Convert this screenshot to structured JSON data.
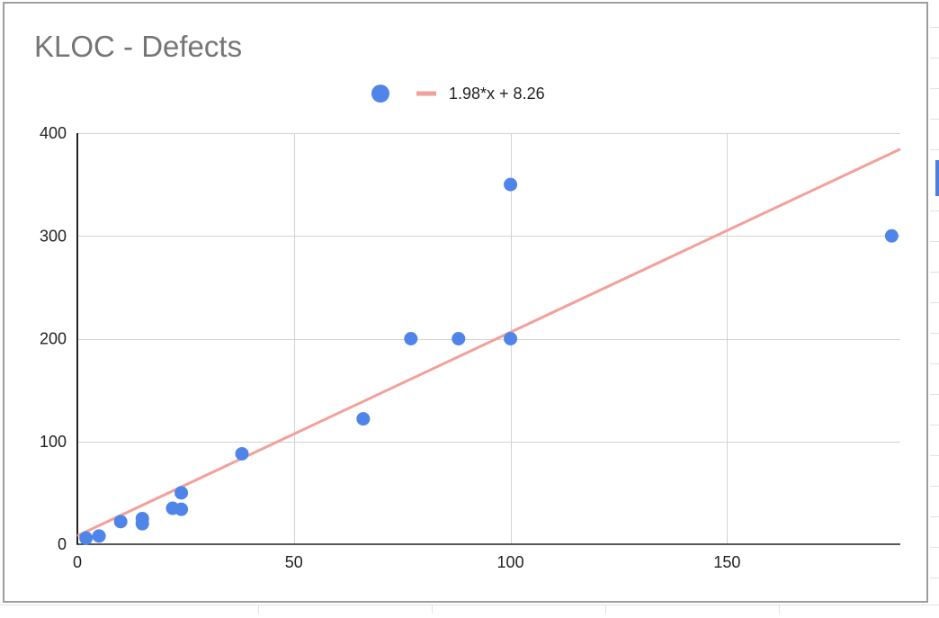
{
  "chart_data": {
    "type": "scatter",
    "title": "KLOC - Defects",
    "xlabel": "",
    "ylabel": "",
    "xlim": [
      0,
      190
    ],
    "ylim": [
      0,
      400
    ],
    "x_ticks": [
      "0",
      "50",
      "100",
      "150"
    ],
    "y_ticks": [
      "0",
      "100",
      "200",
      "300",
      "400"
    ],
    "grid": true,
    "legend_position": "top-center",
    "series": [
      {
        "type": "scatter",
        "color": "#4f84e8",
        "points": [
          {
            "x": 2,
            "y": 6
          },
          {
            "x": 5,
            "y": 8
          },
          {
            "x": 10,
            "y": 22
          },
          {
            "x": 15,
            "y": 25
          },
          {
            "x": 15,
            "y": 20
          },
          {
            "x": 22,
            "y": 35
          },
          {
            "x": 24,
            "y": 50
          },
          {
            "x": 24,
            "y": 34
          },
          {
            "x": 38,
            "y": 88
          },
          {
            "x": 66,
            "y": 122
          },
          {
            "x": 77,
            "y": 200
          },
          {
            "x": 88,
            "y": 200
          },
          {
            "x": 100,
            "y": 350
          },
          {
            "x": 100,
            "y": 200
          },
          {
            "x": 188,
            "y": 300
          }
        ]
      },
      {
        "name": "1.98*x + 8.26",
        "type": "trendline",
        "color": "#f2a09a",
        "slope": 1.98,
        "intercept": 8.26
      }
    ]
  }
}
